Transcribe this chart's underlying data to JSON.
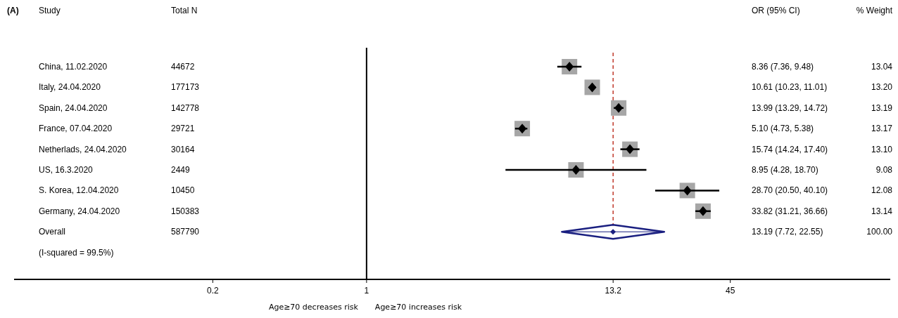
{
  "chart_data": {
    "type": "scatter",
    "orientation": "horizontal",
    "title": "(A)",
    "categories": [
      "China, 11.02.2020",
      "Italy, 24.04.2020",
      "Spain, 24.04.2020",
      "France, 07.04.2020",
      "Netherlads, 24.04.2020",
      "US, 16.3.2020",
      "S. Korea, 12.04.2020",
      "Germany, 24.04.2020",
      "Overall",
      "(I-squared = 99.5%)"
    ],
    "series": [
      {
        "color": "#000000",
        "marker": "diamond",
        "values": [
          8.36,
          10.61,
          13.99,
          5.1,
          15.74,
          8.95,
          28.7,
          33.82,
          null,
          null
        ],
        "errors": [
          [
            7.36,
            9.48
          ],
          [
            10.23,
            11.01
          ],
          [
            13.29,
            14.72
          ],
          [
            4.73,
            5.38
          ],
          [
            14.24,
            17.4
          ],
          [
            4.28,
            18.7
          ],
          [
            20.5,
            40.1
          ],
          [
            31.21,
            36.66
          ],
          null,
          null
        ]
      },
      {
        "color": "#1a1f80",
        "marker": "diamond",
        "values": [
          null,
          null,
          null,
          null,
          null,
          null,
          null,
          null,
          13.19,
          null
        ],
        "errors": [
          null,
          null,
          null,
          null,
          null,
          null,
          null,
          null,
          [
            7.72,
            22.55
          ],
          null
        ]
      }
    ],
    "log": "x",
    "xlim": [
      0.025,
      240
    ],
    "xticks": [
      0.2,
      1,
      13.2,
      45
    ],
    "ref_lines": [
      {
        "axis": "x",
        "value": 1,
        "color": "#000000",
        "line_style": "solid"
      },
      {
        "axis": "x",
        "value": 13.2,
        "color": "#c0392b",
        "line_style": "dashed"
      }
    ],
    "annotations": [
      "Study",
      "Total N",
      "OR (95% CI)",
      "% Weight",
      "Age≥70 decreases risk",
      "Age≥70 increases risk",
      "44672",
      "177173",
      "142778",
      "29721",
      "30164",
      "2449",
      "10450",
      "150383",
      "587790",
      "8.36 (7.36, 9.48)",
      "10.61 (10.23, 11.01)",
      "13.99 (13.29, 14.72)",
      "5.10 (4.73, 5.38)",
      "15.74 (14.24, 17.40)",
      "8.95 (4.28, 18.70)",
      "28.70 (20.50, 40.10)",
      "33.82 (31.21, 36.66)",
      "13.19 (7.72, 22.55)",
      "13.04",
      "13.20",
      "13.19",
      "13.17",
      "13.10",
      "9.08",
      "12.08",
      "13.14",
      "100.00"
    ]
  }
}
